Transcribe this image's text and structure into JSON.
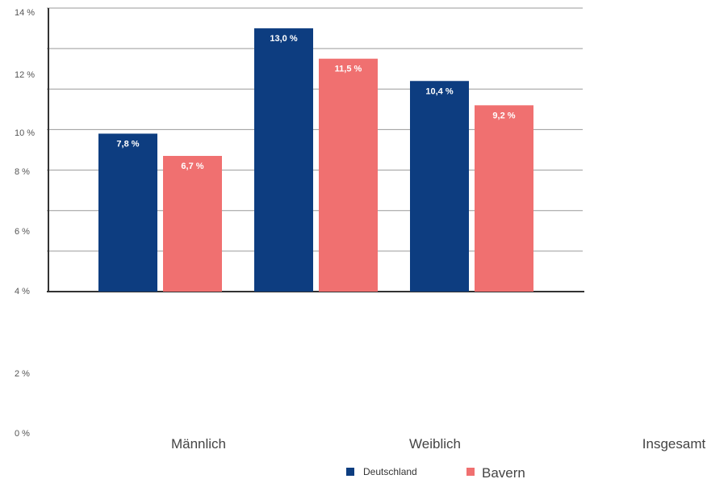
{
  "chart_data": {
    "type": "bar",
    "categories": [
      "Männlich",
      "Weiblich",
      "Insgesamt"
    ],
    "series": [
      {
        "name": "Deutschland",
        "color": "#0d3d80",
        "values": [
          7.8,
          13.0,
          10.4
        ],
        "labels": [
          "7,8 %",
          "13,0 %",
          "10,4 %"
        ]
      },
      {
        "name": "Bavern",
        "color": "#f07070",
        "values": [
          6.7,
          11.5,
          9.2
        ],
        "labels": [
          "6,7 %",
          "11,5 %",
          "9,2 %"
        ]
      }
    ],
    "y_ticks": [
      "14 %",
      "12 %",
      "10 %",
      "8 %",
      "6 %",
      "4 %",
      "2 %",
      "0 %"
    ],
    "ylim": [
      0,
      14
    ],
    "grid": true,
    "legend_position": "bottom-center"
  }
}
